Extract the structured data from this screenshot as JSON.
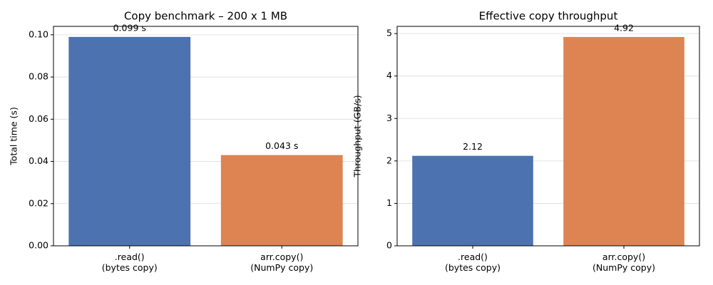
{
  "chart_data": [
    {
      "type": "bar",
      "title": "Copy benchmark – 200 x 1 MB",
      "y_label": "Total time (s)",
      "categories": [
        ".read()\n(bytes copy)",
        "arr.copy()\n(NumPy copy)"
      ],
      "values": [
        0.099,
        0.043
      ],
      "value_labels": [
        "0.099 s",
        "0.043 s"
      ],
      "colors": [
        "#4c72b0",
        "#dd8452"
      ],
      "ylim": [
        0,
        0.104
      ],
      "yticks": [
        {
          "value": 0,
          "label": "0.00"
        },
        {
          "value": 0.02,
          "label": "0.02"
        },
        {
          "value": 0.04,
          "label": "0.04"
        },
        {
          "value": 0.06,
          "label": "0.06"
        },
        {
          "value": 0.08,
          "label": "0.08"
        },
        {
          "value": 0.1,
          "label": "0.10"
        }
      ],
      "grid": true
    },
    {
      "type": "bar",
      "title": "Effective copy throughput",
      "y_label": "Throughput (GB/s)",
      "categories": [
        ".read()\n(bytes copy)",
        "arr.copy()\n(NumPy copy)"
      ],
      "values": [
        2.12,
        4.92
      ],
      "colors": [
        "#4c72b0",
        "#dd8452"
      ],
      "ylim": [
        0,
        5.17
      ],
      "yticks": [
        0,
        1,
        2,
        3,
        4,
        5
      ],
      "grid": true
    }
  ]
}
